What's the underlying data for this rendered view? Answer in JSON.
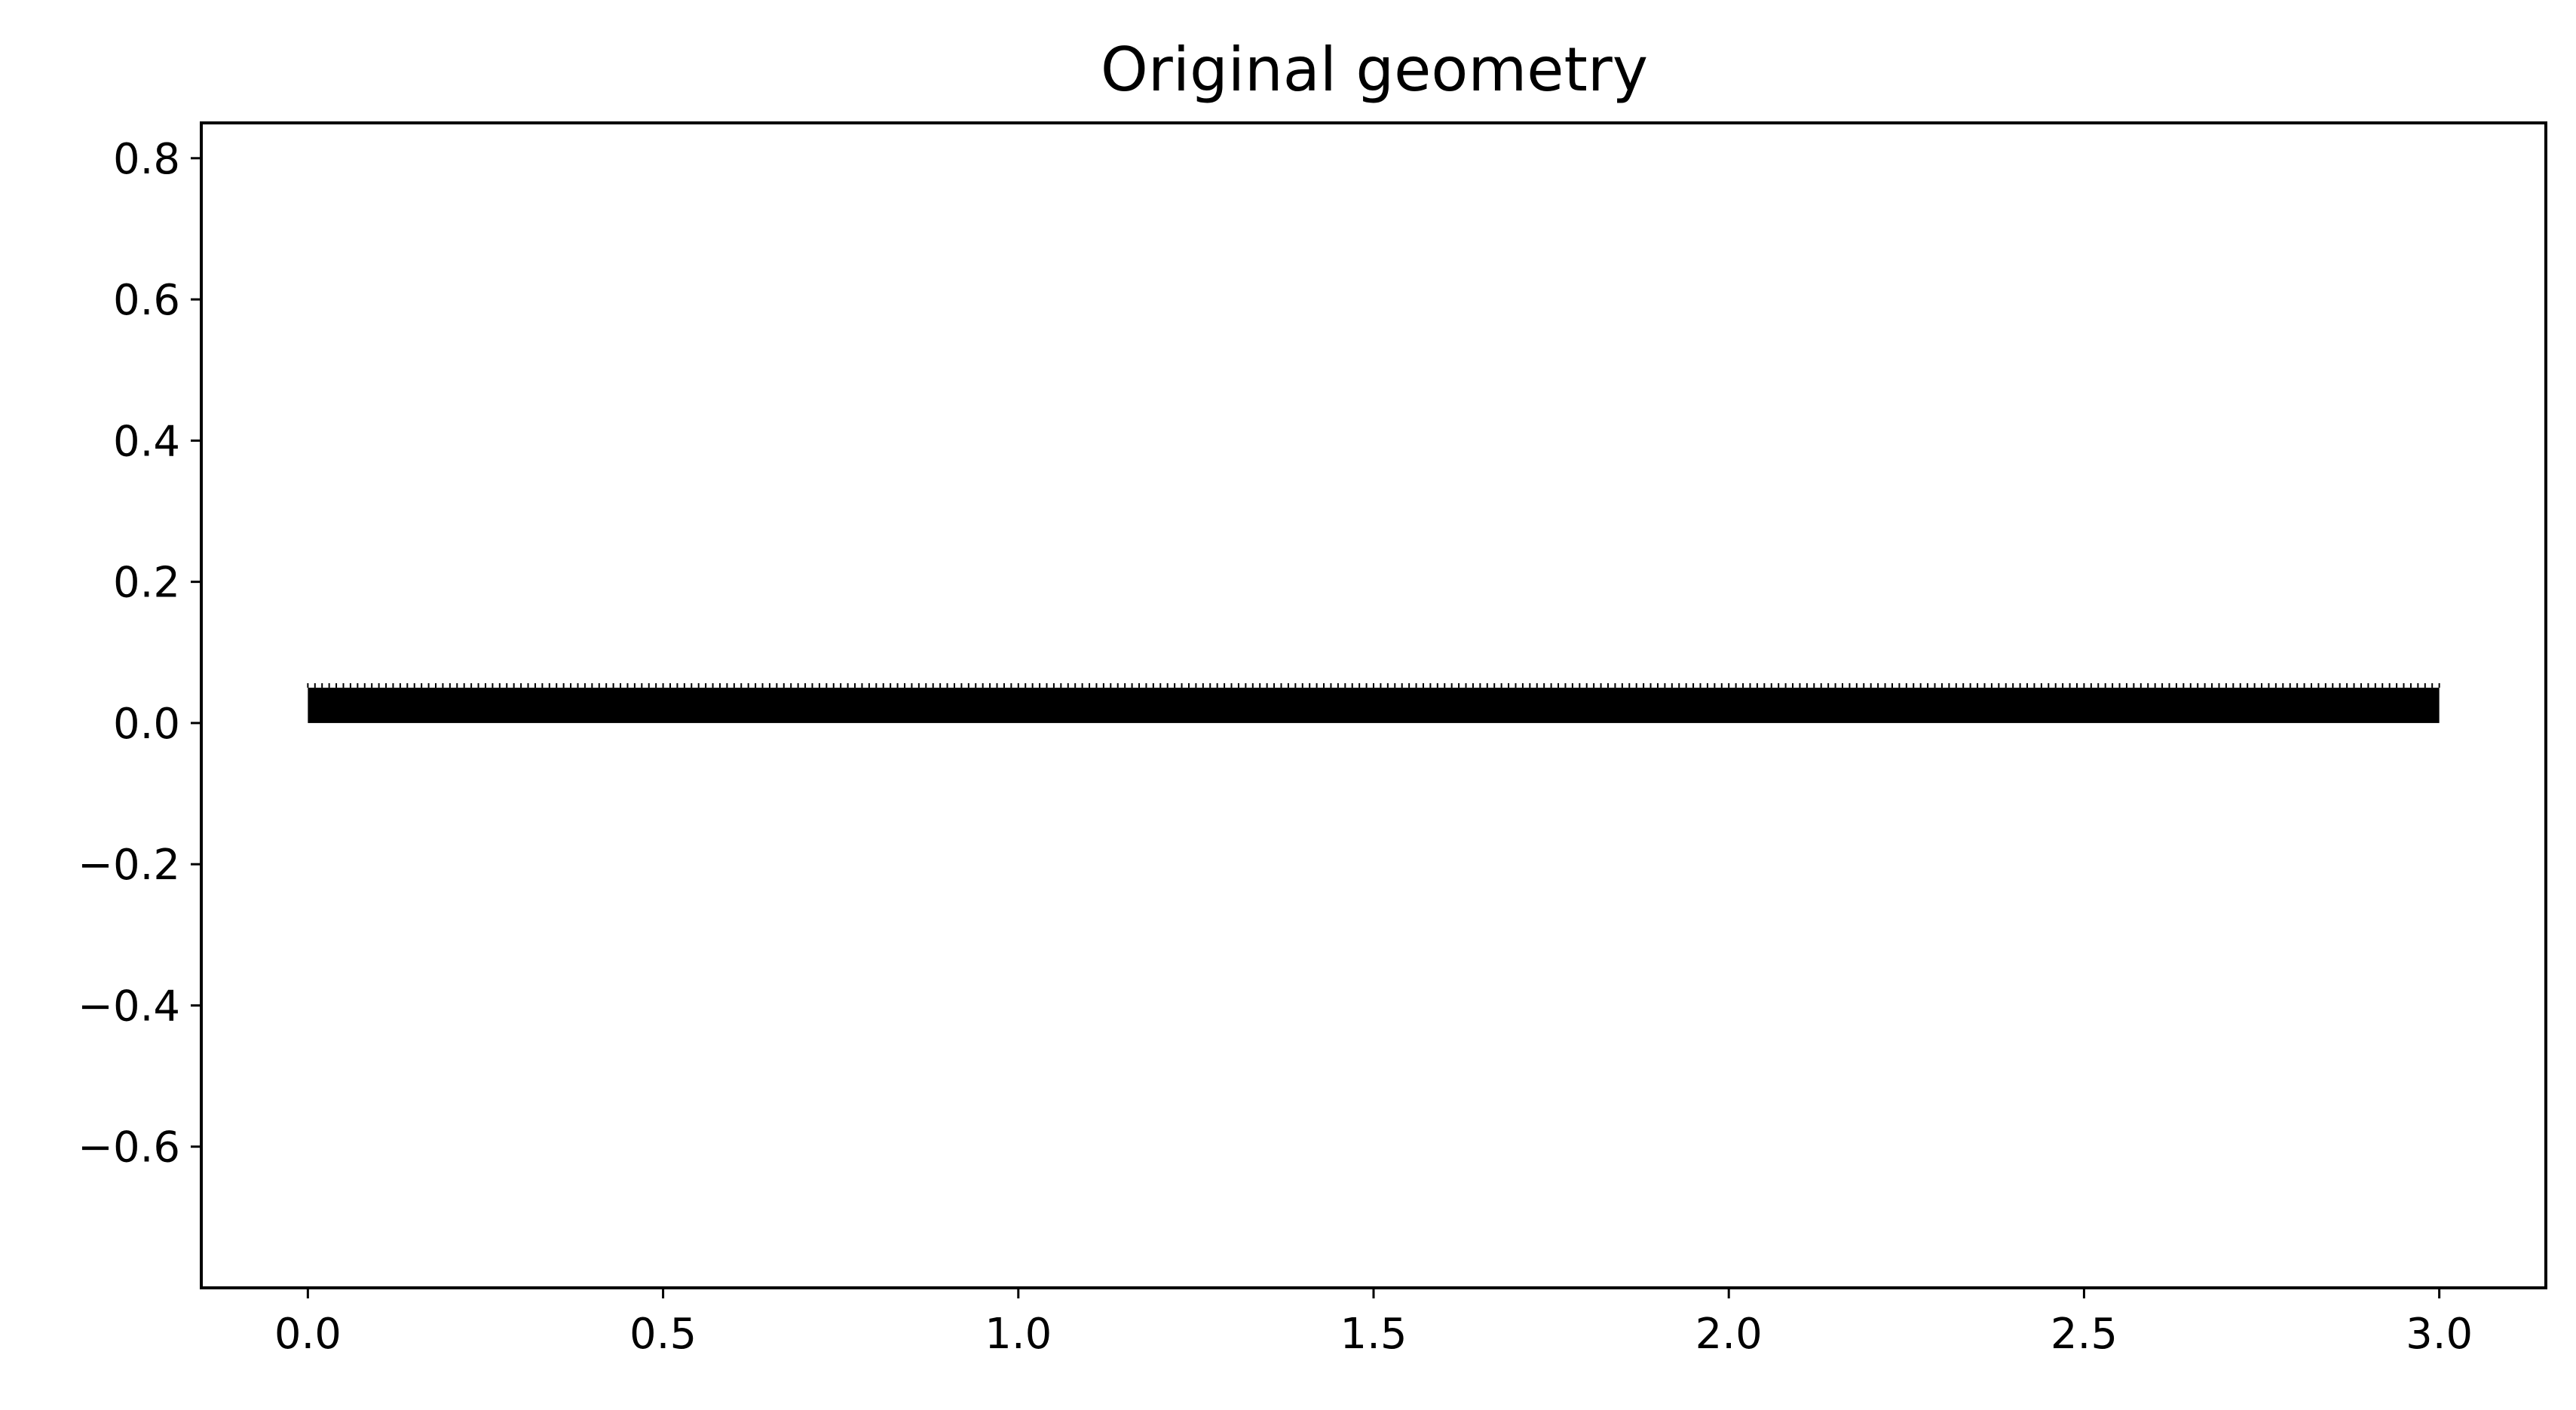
{
  "chart_data": {
    "type": "line",
    "title": "Original geometry",
    "xlabel": "",
    "ylabel": "",
    "xlim": [
      -0.15,
      3.15
    ],
    "ylim": [
      -0.8,
      0.85
    ],
    "xticks": [
      0.0,
      0.5,
      1.0,
      1.5,
      2.0,
      2.5,
      3.0
    ],
    "xtick_labels": [
      "0.0",
      "0.5",
      "1.0",
      "1.5",
      "2.0",
      "2.5",
      "3.0"
    ],
    "yticks": [
      0.8,
      0.6,
      0.4,
      0.2,
      0.0,
      -0.2,
      -0.4,
      -0.6
    ],
    "ytick_labels": [
      "0.8",
      "0.6",
      "0.4",
      "0.2",
      "0.0",
      "−0.2",
      "−0.4",
      "−0.6"
    ],
    "grid": false,
    "legend": "none",
    "geometry": {
      "description_of_shape": "thin rectangular strip with closely spaced element edges",
      "x_range": [
        0.0,
        3.0
      ],
      "y_range": [
        0.0,
        0.05
      ],
      "element_count": 300,
      "color": "#000000"
    }
  }
}
